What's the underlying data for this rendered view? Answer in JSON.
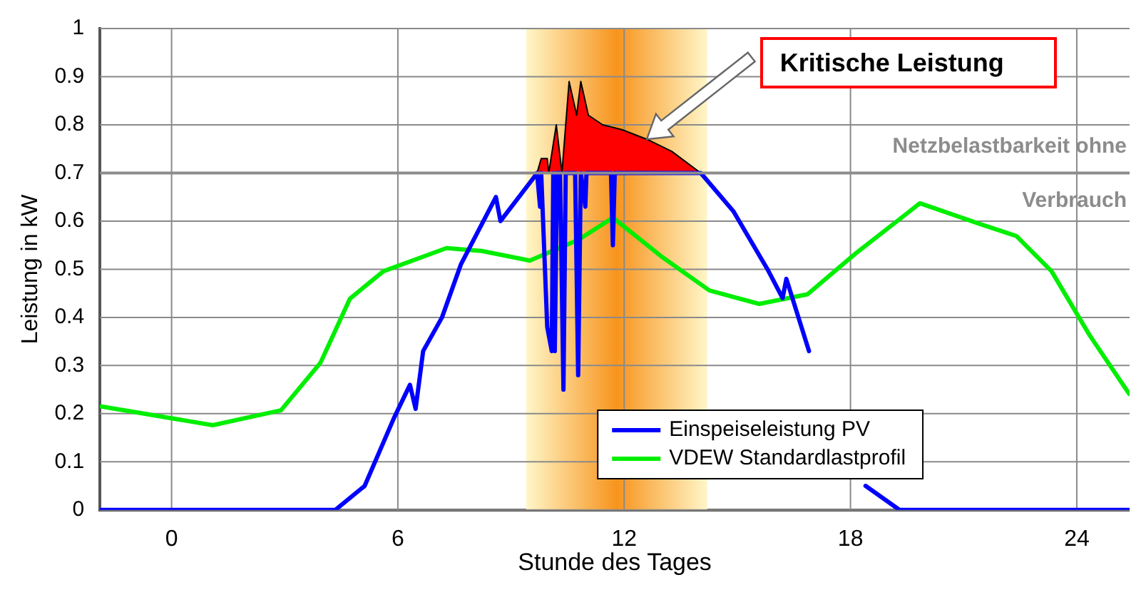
{
  "chart_data": {
    "type": "line",
    "xlabel": "Stunde des Tages",
    "ylabel": "Leistung in kW",
    "xlim": [
      -1.9,
      25.4
    ],
    "xticks": [
      0,
      6,
      12,
      18,
      24
    ],
    "ylim": [
      0,
      1
    ],
    "yticks": [
      0,
      0.1,
      0.2,
      0.3,
      0.4,
      0.5,
      0.6,
      0.7,
      0.8,
      0.9,
      1
    ],
    "grid": true,
    "legend": "bottom right",
    "marker": "none",
    "line_style": "solid",
    "series": [
      {
        "name": "Einspeiseleistung PV",
        "color": "#0000ff",
        "x": [
          -1.9,
          4.34,
          5.12,
          5.89,
          6.32,
          6.47,
          6.67,
          7.17,
          7.67,
          8.6,
          8.72,
          9.6,
          9.69,
          9.77,
          9.8,
          9.96,
          10.08,
          10.12,
          10.16,
          10.22,
          10.3,
          10.39,
          10.45,
          10.54,
          10.7,
          10.78,
          10.85,
          10.97,
          11.0,
          11.65,
          11.7,
          11.75,
          14.03,
          14.9,
          15.8,
          16.2,
          16.3,
          16.9,
          17.5,
          18.4,
          19.3,
          25.4
        ],
        "values": [
          0,
          0,
          0.05,
          0.19,
          0.26,
          0.21,
          0.33,
          0.4,
          0.51,
          0.65,
          0.6,
          0.69,
          0.7,
          0.63,
          0.7,
          0.38,
          0.33,
          0.7,
          0.33,
          0.7,
          0.7,
          0.25,
          0.7,
          0.7,
          0.7,
          0.28,
          0.7,
          0.63,
          0.7,
          0.7,
          0.55,
          0.7,
          0.7,
          0.62,
          0.5,
          0.44,
          0.48,
          0.33,
          null,
          0.05,
          0,
          0
        ]
      },
      {
        "name": "VDEW Standardlastprofil",
        "color": "#00ee00",
        "x": [
          -1.86,
          1.09,
          2.9,
          3.95,
          4.73,
          5.62,
          7.29,
          8.22,
          9.5,
          10.78,
          11.7,
          12.98,
          14.26,
          15.58,
          16.86,
          18.14,
          19.84,
          21.4,
          22.4,
          23.33,
          24.34,
          25.39
        ],
        "values": [
          0.215,
          0.176,
          0.207,
          0.306,
          0.439,
          0.496,
          0.544,
          0.538,
          0.518,
          0.561,
          0.607,
          0.527,
          0.456,
          0.428,
          0.448,
          0.533,
          0.637,
          0.595,
          0.569,
          0.496,
          0.363,
          0.241
        ]
      },
      {
        "type": "area",
        "color": "#ff0000",
        "x": [
          9.69,
          9.8,
          9.96,
          10.0,
          10.2,
          10.35,
          10.54,
          10.74,
          10.85,
          11.05,
          11.43,
          11.94,
          12.6,
          13.26,
          14.03
        ],
        "values": [
          0.7,
          0.73,
          0.73,
          0.7,
          0.8,
          0.7,
          0.89,
          0.82,
          0.89,
          0.82,
          0.8,
          0.79,
          0.77,
          0.745,
          0.7
        ]
      }
    ],
    "ref_lines": [
      {
        "axis": "y",
        "value": 0.7,
        "label": "Netzbelastbarkeit ohne Verbrauch",
        "color": "#8c8c8c"
      }
    ],
    "bands": [
      {
        "axis": "x",
        "from": 9.4,
        "to": 14.2,
        "color": "#f7941d"
      }
    ],
    "annotations": [
      "Kritische Leistung"
    ]
  }
}
